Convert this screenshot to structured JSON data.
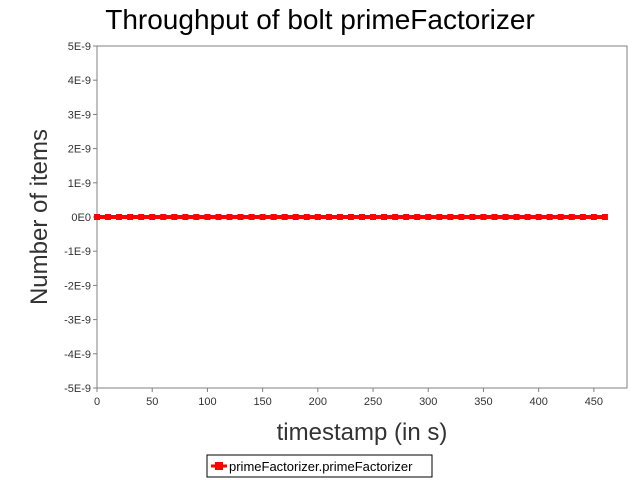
{
  "chart_data": {
    "type": "line",
    "title": "Throughput of bolt primeFactorizer",
    "xlabel": "timestamp (in s)",
    "ylabel": "Number of items",
    "xlim": [
      0,
      480
    ],
    "ylim": [
      -5e-09,
      5e-09
    ],
    "x_ticks": [
      0,
      50,
      100,
      150,
      200,
      250,
      300,
      350,
      400,
      450
    ],
    "x_tick_labels": [
      "0",
      "50",
      "100",
      "150",
      "200",
      "250",
      "300",
      "350",
      "400",
      "450"
    ],
    "y_ticks": [
      5e-09,
      4e-09,
      3e-09,
      2e-09,
      1e-09,
      0,
      -1e-09,
      -2e-09,
      -3e-09,
      -4e-09,
      -5e-09
    ],
    "y_tick_labels": [
      "5E-9",
      "4E-9",
      "3E-9",
      "2E-9",
      "1E-9",
      "0E0",
      "-1E-9",
      "-2E-9",
      "-3E-9",
      "-4E-9",
      "-5E-9"
    ],
    "grid": false,
    "legend_position": "bottom",
    "series": [
      {
        "name": "primeFactorizer.primeFactorizer",
        "color": "#ff0000",
        "x": [
          0,
          10,
          20,
          30,
          40,
          50,
          60,
          70,
          80,
          90,
          100,
          110,
          120,
          130,
          140,
          150,
          160,
          170,
          180,
          190,
          200,
          210,
          220,
          230,
          240,
          250,
          260,
          270,
          280,
          290,
          300,
          310,
          320,
          330,
          340,
          350,
          360,
          370,
          380,
          390,
          400,
          410,
          420,
          430,
          440,
          450,
          460
        ],
        "y": [
          0,
          0,
          0,
          0,
          0,
          0,
          0,
          0,
          0,
          0,
          0,
          0,
          0,
          0,
          0,
          0,
          0,
          0,
          0,
          0,
          0,
          0,
          0,
          0,
          0,
          0,
          0,
          0,
          0,
          0,
          0,
          0,
          0,
          0,
          0,
          0,
          0,
          0,
          0,
          0,
          0,
          0,
          0,
          0,
          0,
          0,
          0
        ]
      }
    ]
  }
}
